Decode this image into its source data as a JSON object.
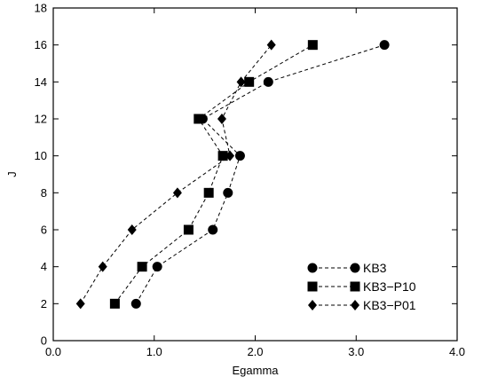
{
  "chart_data": {
    "type": "line",
    "xlabel": "Egamma",
    "ylabel": "J",
    "xlim": [
      0.0,
      4.0
    ],
    "ylim": [
      0,
      18
    ],
    "xticks": [
      "0.0",
      "1.0",
      "2.0",
      "3.0",
      "4.0"
    ],
    "xtick_values": [
      0,
      1,
      2,
      3,
      4
    ],
    "yticks": [
      "0",
      "2",
      "4",
      "6",
      "8",
      "10",
      "12",
      "14",
      "16",
      "18"
    ],
    "ytick_values": [
      0,
      2,
      4,
      6,
      8,
      10,
      12,
      14,
      16,
      18
    ],
    "grid": false,
    "legend_position": "bottom-right",
    "series": [
      {
        "name": "KB3",
        "marker": "circle",
        "line_style": "dashed",
        "points": [
          [
            0.82,
            2
          ],
          [
            1.03,
            4
          ],
          [
            1.58,
            6
          ],
          [
            1.73,
            8
          ],
          [
            1.85,
            10
          ],
          [
            1.48,
            12
          ],
          [
            2.13,
            14
          ],
          [
            3.28,
            16
          ]
        ]
      },
      {
        "name": "KB3−P10",
        "marker": "square",
        "line_style": "dashed",
        "points": [
          [
            0.61,
            2
          ],
          [
            0.88,
            4
          ],
          [
            1.34,
            6
          ],
          [
            1.54,
            8
          ],
          [
            1.68,
            10
          ],
          [
            1.44,
            12
          ],
          [
            1.94,
            14
          ],
          [
            2.57,
            16
          ]
        ]
      },
      {
        "name": "KB3−P01",
        "marker": "diamond",
        "line_style": "dashed",
        "points": [
          [
            0.27,
            2
          ],
          [
            0.49,
            4
          ],
          [
            0.78,
            6
          ],
          [
            1.23,
            8
          ],
          [
            1.75,
            10
          ],
          [
            1.67,
            12
          ],
          [
            1.86,
            14
          ],
          [
            2.16,
            16
          ]
        ]
      }
    ]
  }
}
